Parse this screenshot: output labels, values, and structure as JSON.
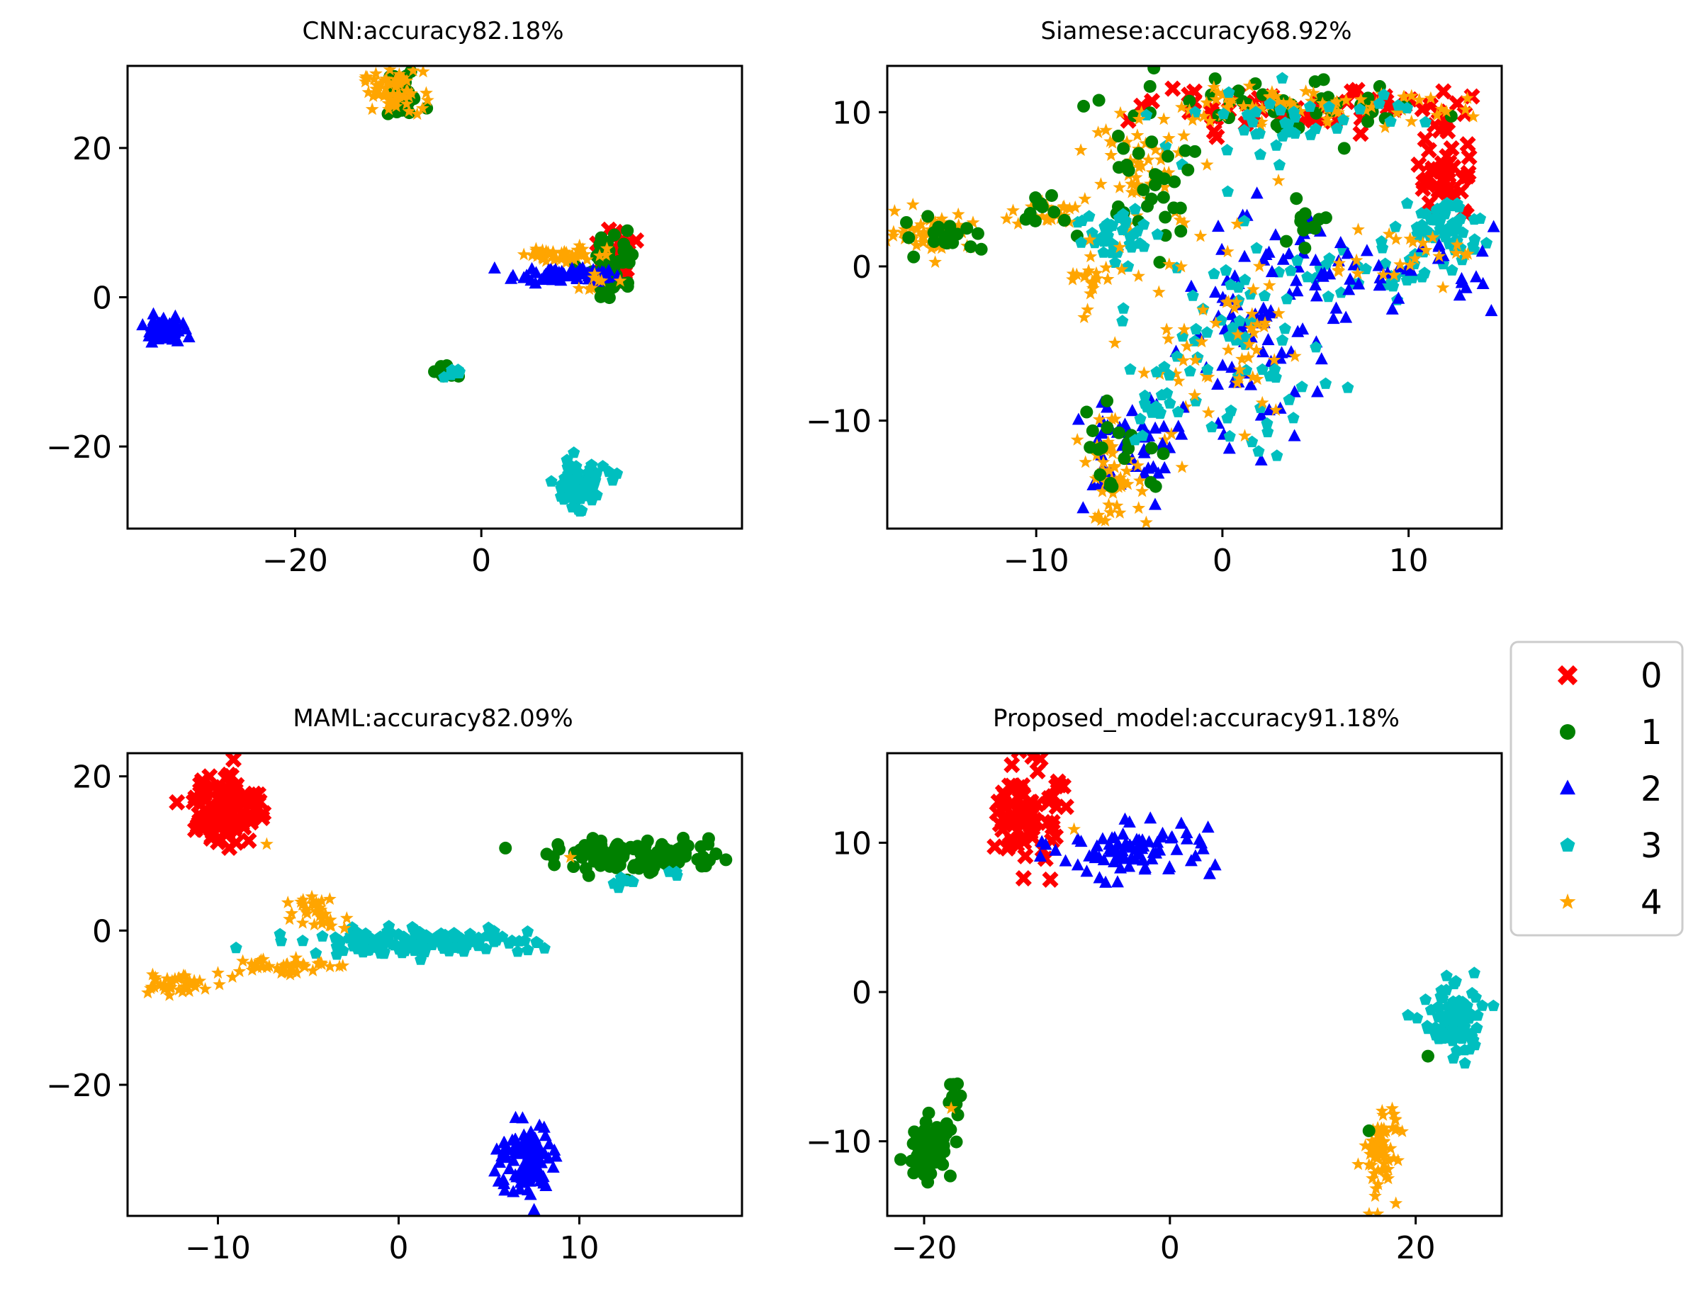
{
  "chart_data": [
    {
      "type": "scatter",
      "title": "CNN:accuracy82.18%",
      "xlabel": "",
      "ylabel": "",
      "xlim": [
        -38,
        28
      ],
      "ylim": [
        -31,
        31
      ],
      "xticks": [
        -20,
        0
      ],
      "yticks": [
        20,
        0,
        -20
      ],
      "clusters": [
        {
          "class": "1",
          "cx": -8.5,
          "cy": 27,
          "sx": 1.2,
          "sy": 1.6,
          "n": 30
        },
        {
          "class": "4",
          "cx": -9.5,
          "cy": 27.5,
          "sx": 1.6,
          "sy": 1.4,
          "n": 60
        },
        {
          "class": "0",
          "cx": 14.5,
          "cy": 5.5,
          "sx": 0.8,
          "sy": 1.8,
          "n": 30
        },
        {
          "class": "1",
          "cx": 14,
          "cy": 4.5,
          "sx": 1.2,
          "sy": 2.2,
          "n": 60
        },
        {
          "class": "4",
          "cx": 9,
          "cy": 5.8,
          "sx": 2.2,
          "sy": 0.6,
          "n": 40
        },
        {
          "class": "2",
          "cx": 8.5,
          "cy": 3,
          "sx": 2.6,
          "sy": 0.5,
          "n": 60
        },
        {
          "class": "4",
          "cx": 12,
          "cy": 2,
          "sx": 1.2,
          "sy": 0.6,
          "n": 8
        },
        {
          "class": "2",
          "cx": -34,
          "cy": -4.5,
          "sx": 1.0,
          "sy": 0.8,
          "n": 80
        },
        {
          "class": "1",
          "cx": -3.8,
          "cy": -10,
          "sx": 0.5,
          "sy": 0.5,
          "n": 15
        },
        {
          "class": "3",
          "cx": -3,
          "cy": -10.2,
          "sx": 0.4,
          "sy": 0.4,
          "n": 8
        },
        {
          "class": "3",
          "cx": 10.5,
          "cy": -25,
          "sx": 1.4,
          "sy": 1.4,
          "n": 90
        }
      ]
    },
    {
      "type": "scatter",
      "title": "Siamese:accuracy68.92%",
      "xlabel": "",
      "ylabel": "",
      "xlim": [
        -18,
        15
      ],
      "ylim": [
        -17,
        13
      ],
      "xticks": [
        -10,
        0,
        10
      ],
      "yticks": [
        10,
        0,
        -10
      ],
      "clusters": [
        {
          "class": "0",
          "cx": 5,
          "cy": 10.2,
          "sx": 4.5,
          "sy": 0.6,
          "n": 70
        },
        {
          "class": "0",
          "cx": 12,
          "cy": 6,
          "sx": 0.8,
          "sy": 1.5,
          "n": 40
        },
        {
          "class": "1",
          "cx": 3,
          "cy": 10,
          "sx": 4.5,
          "sy": 1.0,
          "n": 50
        },
        {
          "class": "4",
          "cx": 4,
          "cy": 10.3,
          "sx": 4.5,
          "sy": 0.5,
          "n": 70
        },
        {
          "class": "3",
          "cx": 3.5,
          "cy": 9.5,
          "sx": 3.5,
          "sy": 1.2,
          "n": 40
        },
        {
          "class": "4",
          "cx": -4,
          "cy": 6,
          "sx": 1.5,
          "sy": 2,
          "n": 50
        },
        {
          "class": "1",
          "cx": -4,
          "cy": 5.5,
          "sx": 1.6,
          "sy": 2,
          "n": 30
        },
        {
          "class": "3",
          "cx": -5.5,
          "cy": 2,
          "sx": 1.2,
          "sy": 1,
          "n": 40
        },
        {
          "class": "4",
          "cx": -15.5,
          "cy": 2.3,
          "sx": 1.0,
          "sy": 0.6,
          "n": 60
        },
        {
          "class": "1",
          "cx": -15,
          "cy": 2,
          "sx": 1.2,
          "sy": 0.8,
          "n": 20
        },
        {
          "class": "4",
          "cx": -9,
          "cy": 3.5,
          "sx": 1.2,
          "sy": 0.5,
          "n": 25
        },
        {
          "class": "1",
          "cx": -9.5,
          "cy": 3.5,
          "sx": 1.0,
          "sy": 0.4,
          "n": 10
        },
        {
          "class": "4",
          "cx": -7,
          "cy": -0.5,
          "sx": 0.6,
          "sy": 1.0,
          "n": 20
        },
        {
          "class": "3",
          "cx": 12,
          "cy": 2.5,
          "sx": 1.0,
          "sy": 1.0,
          "n": 50
        },
        {
          "class": "3",
          "cx": 9,
          "cy": -0.5,
          "sx": 2.5,
          "sy": 0.8,
          "n": 35
        },
        {
          "class": "2",
          "cx": 9,
          "cy": 0,
          "sx": 3,
          "sy": 1.2,
          "n": 40
        },
        {
          "class": "4",
          "cx": 10,
          "cy": 0.5,
          "sx": 2.5,
          "sy": 1.0,
          "n": 25
        },
        {
          "class": "2",
          "cx": 2,
          "cy": -4,
          "sx": 2,
          "sy": 3.5,
          "n": 90
        },
        {
          "class": "3",
          "cx": 1,
          "cy": -5,
          "sx": 2.5,
          "sy": 3.5,
          "n": 60
        },
        {
          "class": "4",
          "cx": 0,
          "cy": -6,
          "sx": 2.5,
          "sy": 3.5,
          "n": 60
        },
        {
          "class": "1",
          "cx": 4.5,
          "cy": 3,
          "sx": 0.5,
          "sy": 0.8,
          "n": 12
        },
        {
          "class": "2",
          "cx": -5,
          "cy": -12,
          "sx": 1.5,
          "sy": 2,
          "n": 50
        },
        {
          "class": "4",
          "cx": -6,
          "cy": -13.5,
          "sx": 0.8,
          "sy": 1.5,
          "n": 50
        },
        {
          "class": "1",
          "cx": -5.5,
          "cy": -12,
          "sx": 1.5,
          "sy": 1.5,
          "n": 20
        },
        {
          "class": "3",
          "cx": -3,
          "cy": -9,
          "sx": 1.5,
          "sy": 1.5,
          "n": 20
        }
      ]
    },
    {
      "type": "scatter",
      "title": "MAML:accuracy82.09%",
      "xlabel": "",
      "ylabel": "",
      "xlim": [
        -15,
        19
      ],
      "ylim": [
        -37,
        23
      ],
      "xticks": [
        -10,
        0,
        10
      ],
      "yticks": [
        20,
        0,
        -20
      ],
      "clusters": [
        {
          "class": "0",
          "cx": -9.5,
          "cy": 16,
          "sx": 0.9,
          "sy": 2.4,
          "n": 100
        },
        {
          "class": "4",
          "cx": -7.3,
          "cy": 11.2,
          "sx": 0.1,
          "sy": 0.1,
          "n": 1
        },
        {
          "class": "1",
          "cx": 13.5,
          "cy": 9.5,
          "sx": 2.5,
          "sy": 1.0,
          "n": 120
        },
        {
          "class": "3",
          "cx": 12.5,
          "cy": 6.5,
          "sx": 0.4,
          "sy": 0.4,
          "n": 8
        },
        {
          "class": "3",
          "cx": 15.2,
          "cy": 7.5,
          "sx": 0.3,
          "sy": 0.3,
          "n": 3
        },
        {
          "class": "4",
          "cx": 9.5,
          "cy": 9.5,
          "sx": 0.1,
          "sy": 0.1,
          "n": 1
        },
        {
          "class": "3",
          "cx": 1,
          "cy": -1.5,
          "sx": 3.2,
          "sy": 0.8,
          "n": 150
        },
        {
          "class": "4",
          "cx": -4.5,
          "cy": 3,
          "sx": 0.6,
          "sy": 1.2,
          "n": 30
        },
        {
          "class": "4",
          "cx": -6.5,
          "cy": -4.5,
          "sx": 1.3,
          "sy": 0.6,
          "n": 40
        },
        {
          "class": "4",
          "cx": -12.5,
          "cy": -7,
          "sx": 1.0,
          "sy": 0.8,
          "n": 40
        },
        {
          "class": "4",
          "cx": -3,
          "cy": 0.3,
          "sx": 0.1,
          "sy": 0.1,
          "n": 1
        },
        {
          "class": "4",
          "cx": -10,
          "cy": -5.5,
          "sx": 0.1,
          "sy": 0.1,
          "n": 1
        },
        {
          "class": "2",
          "cx": 7,
          "cy": -30,
          "sx": 0.8,
          "sy": 2.5,
          "n": 100
        }
      ]
    },
    {
      "type": "scatter",
      "title": "Proposed_model:accuracy91.18%",
      "xlabel": "",
      "ylabel": "",
      "xlim": [
        -23,
        27
      ],
      "ylim": [
        -15,
        16
      ],
      "xticks": [
        -20,
        0,
        20
      ],
      "yticks": [
        10,
        0,
        -10
      ],
      "clusters": [
        {
          "class": "0",
          "cx": -11.5,
          "cy": 12,
          "sx": 1.2,
          "sy": 1.6,
          "n": 90
        },
        {
          "class": "2",
          "cx": -3,
          "cy": 9.5,
          "sx": 3.2,
          "sy": 0.9,
          "n": 80
        },
        {
          "class": "4",
          "cx": -7.8,
          "cy": 10.9,
          "sx": 0.1,
          "sy": 0.1,
          "n": 1
        },
        {
          "class": "3",
          "cx": 23,
          "cy": -2,
          "sx": 1.2,
          "sy": 1.2,
          "n": 90
        },
        {
          "class": "1",
          "cx": 21,
          "cy": -4.3,
          "sx": 0.1,
          "sy": 0.1,
          "n": 1
        },
        {
          "class": "1",
          "cx": -19.5,
          "cy": -10.5,
          "sx": 0.9,
          "sy": 1.0,
          "n": 70
        },
        {
          "class": "1",
          "cx": -17.7,
          "cy": -6.5,
          "sx": 0.3,
          "sy": 0.7,
          "n": 12
        },
        {
          "class": "4",
          "cx": -17.8,
          "cy": -7.8,
          "sx": 0.1,
          "sy": 0.1,
          "n": 1
        },
        {
          "class": "4",
          "cx": 17,
          "cy": -11,
          "sx": 0.6,
          "sy": 1.4,
          "n": 60
        },
        {
          "class": "4",
          "cx": 18.5,
          "cy": -8.5,
          "sx": 0.5,
          "sy": 0.5,
          "n": 10
        },
        {
          "class": "1",
          "cx": 16.2,
          "cy": -9.3,
          "sx": 0.1,
          "sy": 0.1,
          "n": 1
        }
      ]
    }
  ],
  "legend": {
    "placement": "right",
    "items": [
      {
        "label": "0",
        "marker": "x",
        "color": "#ff0000"
      },
      {
        "label": "1",
        "marker": "circle",
        "color": "#008000"
      },
      {
        "label": "2",
        "marker": "triangle",
        "color": "#0000ff"
      },
      {
        "label": "3",
        "marker": "pentagon",
        "color": "#00bfbf"
      },
      {
        "label": "4",
        "marker": "star",
        "color": "#ffa500"
      }
    ]
  }
}
